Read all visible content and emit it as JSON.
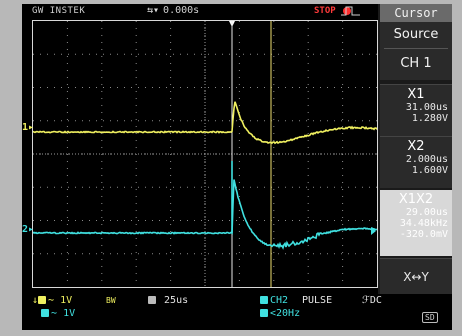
{
  "header": {
    "brand": "GW INSTEK",
    "trigger_position": "0.000s",
    "trigger_position_icon": "arrow-left-right-icon",
    "run_state": "STOP"
  },
  "side_menu": {
    "title": "Cursor",
    "source_label": "Source",
    "source_value": "CH 1",
    "x1": {
      "label": "X1",
      "time": "31.00us",
      "voltage": "1.280V"
    },
    "x2": {
      "label": "X2",
      "time": "2.000us",
      "voltage": "1.600V"
    },
    "x1x2": {
      "label": "X1X2",
      "delta_t": "29.00us",
      "freq": "34.48kHz",
      "delta_v": "-320.0mV"
    },
    "xy": {
      "label": "X↔Y"
    }
  },
  "markers": {
    "ch1": "1",
    "ch2": "2"
  },
  "bottom_bar": {
    "ch1_scale": "1V",
    "ch2_scale": "1V",
    "bandwidth": "BW",
    "timebase": "25us",
    "trigger_source": "CH2",
    "trigger_type": "PULSE",
    "trigger_coupling": "DC",
    "trigger_freq": "<20Hz",
    "storage": "SD"
  },
  "colors": {
    "ch1": "#f0f060",
    "ch2": "#40e0e0",
    "grid": "#d8d8d8",
    "run_state": "#ff3030"
  }
}
